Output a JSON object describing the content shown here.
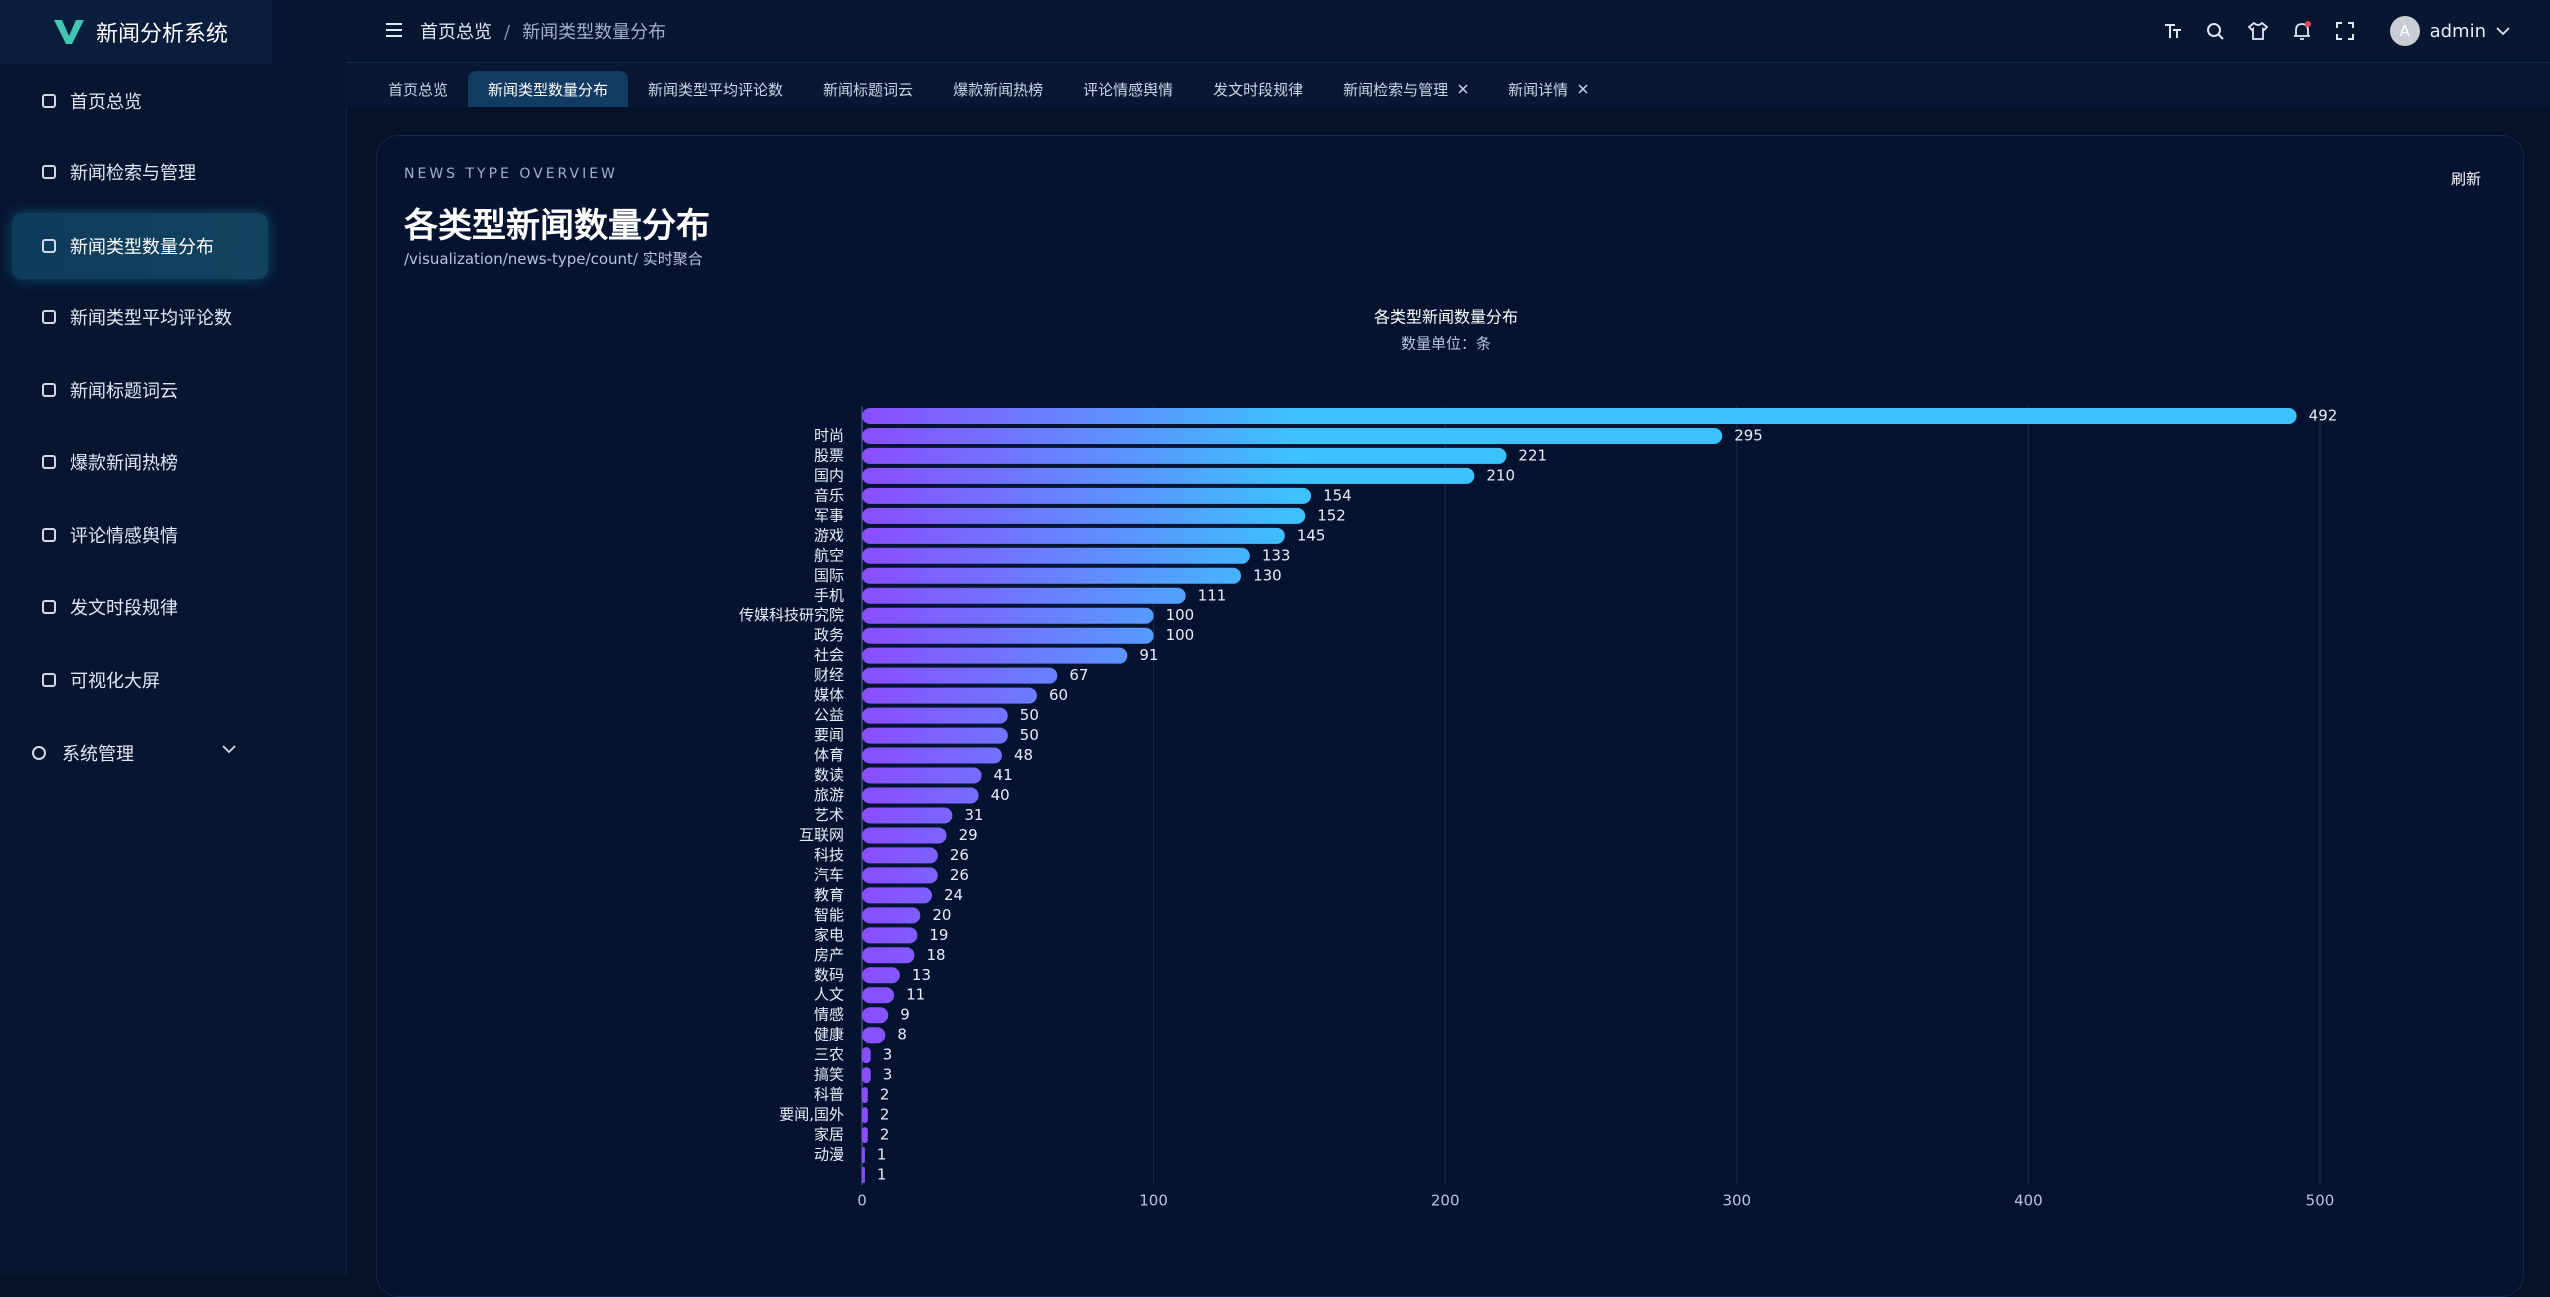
{
  "sidebar": {
    "brand": "新闻分析系统",
    "menu": [
      "首页总览",
      "新闻检索与管理",
      "新闻类型数量分布",
      "新闻类型平均评论数",
      "新闻标题词云",
      "爆款新闻热榜",
      "评论情感舆情",
      "发文时段规律",
      "可视化大屏",
      "系统管理"
    ],
    "active": 2
  },
  "header": {
    "breadcrumb": [
      "首页总览",
      "新闻类型数量分布"
    ],
    "separator": "/",
    "user_initial": "A",
    "user": "admin"
  },
  "tabs": {
    "items": [
      "首页总览",
      "新闻类型数量分布",
      "新闻类型平均评论数",
      "新闻标题词云",
      "爆款新闻热榜",
      "评论情感舆情",
      "发文时段规律",
      "新闻检索与管理",
      "新闻详情"
    ],
    "active": 1
  },
  "card": {
    "eyebrow": "NEWS TYPE OVERVIEW",
    "title": "各类型新闻数量分布",
    "path": "/visualization/news-type/count/ 实时聚合",
    "refresh": "刷新"
  },
  "chart_data": {
    "type": "bar",
    "orientation": "horizontal",
    "title": "各类型新闻数量分布",
    "subtitle": "数量单位：条",
    "categories": [
      null,
      "时尚",
      "股票",
      "国内",
      "音乐",
      "军事",
      "游戏",
      "航空",
      "国际",
      "手机",
      "传媒科技研究院",
      "政务",
      "社会",
      "财经",
      "媒体",
      "公益",
      "要闻",
      "体育",
      "数读",
      "旅游",
      "艺术",
      "互联网",
      "科技",
      "汽车",
      "教育",
      "智能",
      "家电",
      "房产",
      "数码",
      "人文",
      "情感",
      "健康",
      "三农",
      "搞笑",
      "科普",
      "要闻,国外",
      "家居",
      "动漫",
      null
    ],
    "values": [
      492,
      295,
      221,
      210,
      154,
      152,
      145,
      133,
      130,
      111,
      100,
      100,
      91,
      67,
      60,
      50,
      50,
      48,
      41,
      40,
      31,
      29,
      26,
      26,
      24,
      20,
      19,
      18,
      13,
      11,
      9,
      8,
      3,
      3,
      2,
      2,
      2,
      1,
      1
    ],
    "color": [
      "#8a4dff",
      "#3cc3ff"
    ],
    "xlim": [
      0,
      500
    ],
    "xticks": [
      0,
      100,
      200,
      300,
      400,
      500
    ],
    "grid": true
  }
}
